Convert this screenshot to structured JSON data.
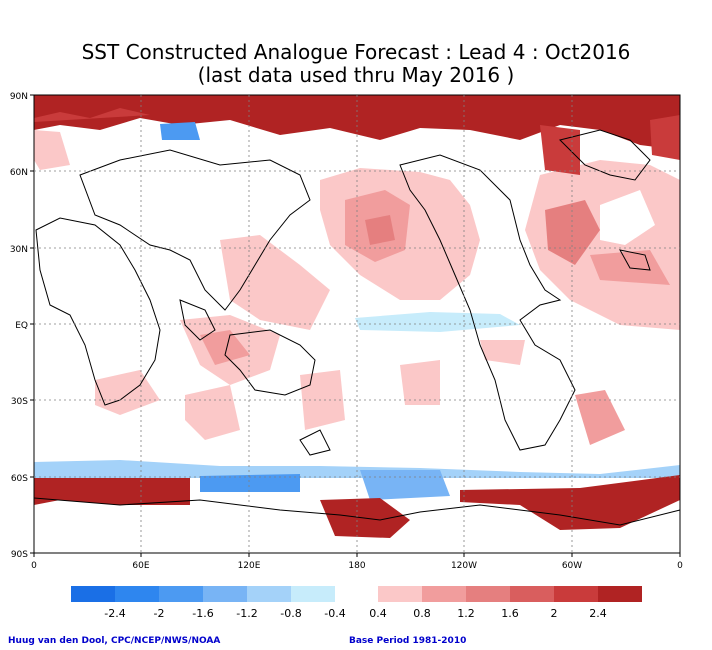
{
  "title": "SST Constructed Analogue Forecast : Lead 4 : Oct2016",
  "subtitle": "(last data used thru May 2016 )",
  "lat_labels": [
    "90N",
    "60N",
    "30N",
    "EQ",
    "30S",
    "60S",
    "90S"
  ],
  "lon_labels": [
    "0",
    "60E",
    "120E",
    "180",
    "120W",
    "60W",
    "0"
  ],
  "colorbar": {
    "labels": [
      "-2.4",
      "-2",
      "-1.6",
      "-1.2",
      "-0.8",
      "-0.4",
      "0.4",
      "0.8",
      "1.2",
      "1.6",
      "2",
      "2.4"
    ],
    "negative_colors": [
      "#1a6fe6",
      "#2e86ef",
      "#4c9af2",
      "#78b4f5",
      "#a4d2f9",
      "#c7ecfb"
    ],
    "positive_colors": [
      "#fbc8c8",
      "#f19d9d",
      "#e57f7f",
      "#d95e5e",
      "#c93b3b",
      "#b02323"
    ]
  },
  "credit_left": "Huug van den Dool, CPC/NCEP/NWS/NOAA",
  "credit_right": "Base Period 1981-2010"
}
